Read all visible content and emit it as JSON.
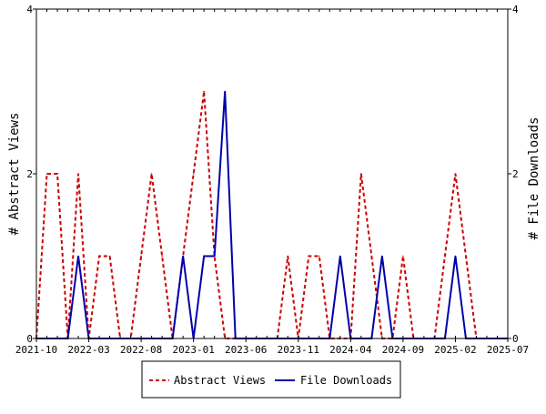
{
  "chart_data": {
    "type": "line",
    "title": "",
    "xlabel": "",
    "ylabel": "# Abstract Views",
    "y2label": "# File Downloads",
    "xlim": [
      "2021-10",
      "2025-07"
    ],
    "ylim": [
      0,
      4
    ],
    "y2lim": [
      0,
      4
    ],
    "x_tick_labels": [
      "2021-10",
      "2022-03",
      "2022-08",
      "2023-01",
      "2023-06",
      "2023-11",
      "2024-04",
      "2024-09",
      "2025-02",
      "2025-07"
    ],
    "y_ticks": [
      "0",
      "2",
      "4"
    ],
    "y2_ticks": [
      "0",
      "2",
      "4"
    ],
    "legend_position": "bottom-center",
    "grid": false,
    "x": [
      "2021-10",
      "2021-11",
      "2021-12",
      "2022-01",
      "2022-02",
      "2022-03",
      "2022-04",
      "2022-05",
      "2022-06",
      "2022-07",
      "2022-08",
      "2022-09",
      "2022-10",
      "2022-11",
      "2022-12",
      "2023-01",
      "2023-02",
      "2023-03",
      "2023-04",
      "2023-05",
      "2023-06",
      "2023-07",
      "2023-08",
      "2023-09",
      "2023-10",
      "2023-11",
      "2023-12",
      "2024-01",
      "2024-02",
      "2024-03",
      "2024-04",
      "2024-05",
      "2024-06",
      "2024-07",
      "2024-08",
      "2024-09",
      "2024-10",
      "2024-11",
      "2024-12",
      "2025-01",
      "2025-02",
      "2025-03",
      "2025-04",
      "2025-05",
      "2025-06",
      "2025-07"
    ],
    "series": [
      {
        "name": "Abstract Views",
        "color": "#cc0000",
        "style": "dashed",
        "axis": "left",
        "values": [
          0,
          2,
          2,
          0,
          2,
          0,
          1,
          1,
          0,
          0,
          1,
          2,
          1,
          0,
          1,
          2,
          3,
          1,
          0,
          0,
          0,
          0,
          0,
          0,
          1,
          0,
          1,
          1,
          0,
          0,
          0,
          2,
          1,
          0,
          0,
          1,
          0,
          0,
          0,
          1,
          2,
          1,
          0,
          0,
          0,
          0
        ]
      },
      {
        "name": "File Downloads",
        "color": "#0000aa",
        "style": "solid",
        "axis": "right",
        "values": [
          0,
          0,
          0,
          0,
          1,
          0,
          0,
          0,
          0,
          0,
          0,
          0,
          0,
          0,
          1,
          0,
          1,
          1,
          3,
          0,
          0,
          0,
          0,
          0,
          0,
          0,
          0,
          0,
          0,
          1,
          0,
          0,
          0,
          1,
          0,
          0,
          0,
          0,
          0,
          0,
          1,
          0,
          0,
          0,
          0,
          0
        ]
      }
    ]
  }
}
